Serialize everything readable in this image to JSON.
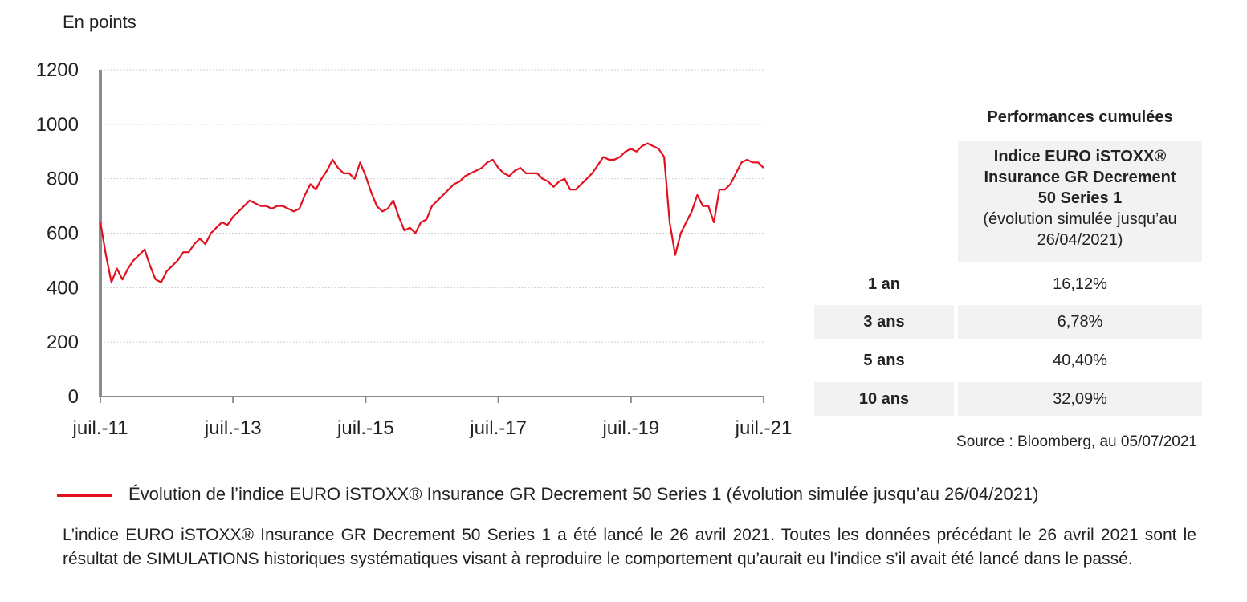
{
  "chart_data": {
    "type": "line",
    "ylabel": "En points",
    "ylim": [
      0,
      1200
    ],
    "yticks": [
      "0",
      "200",
      "400",
      "600",
      "800",
      "1000",
      "1200"
    ],
    "xlim": [
      "2011-07",
      "2021-07"
    ],
    "xticks": [
      "juil.-11",
      "juil.-13",
      "juil.-15",
      "juil.-17",
      "juil.-19",
      "juil.-21"
    ],
    "grid": true,
    "line_color": "#e3101f",
    "series": [
      {
        "name": "Évolution de l’indice EURO iSTOXX® Insurance GR Decrement 50 Series 1 (évolution simulée jusqu’au 26/04/2021)",
        "x": [
          "2011-07",
          "2011-08",
          "2011-09",
          "2011-10",
          "2011-11",
          "2011-12",
          "2012-01",
          "2012-02",
          "2012-03",
          "2012-04",
          "2012-05",
          "2012-06",
          "2012-07",
          "2012-08",
          "2012-09",
          "2012-10",
          "2012-11",
          "2012-12",
          "2013-01",
          "2013-02",
          "2013-03",
          "2013-04",
          "2013-05",
          "2013-06",
          "2013-07",
          "2013-08",
          "2013-09",
          "2013-10",
          "2013-11",
          "2013-12",
          "2014-01",
          "2014-02",
          "2014-03",
          "2014-04",
          "2014-05",
          "2014-06",
          "2014-07",
          "2014-08",
          "2014-09",
          "2014-10",
          "2014-11",
          "2014-12",
          "2015-01",
          "2015-02",
          "2015-03",
          "2015-04",
          "2015-05",
          "2015-06",
          "2015-07",
          "2015-08",
          "2015-09",
          "2015-10",
          "2015-11",
          "2015-12",
          "2016-01",
          "2016-02",
          "2016-03",
          "2016-04",
          "2016-05",
          "2016-06",
          "2016-07",
          "2016-08",
          "2016-09",
          "2016-10",
          "2016-11",
          "2016-12",
          "2017-01",
          "2017-02",
          "2017-03",
          "2017-04",
          "2017-05",
          "2017-06",
          "2017-07",
          "2017-08",
          "2017-09",
          "2017-10",
          "2017-11",
          "2017-12",
          "2018-01",
          "2018-02",
          "2018-03",
          "2018-04",
          "2018-05",
          "2018-06",
          "2018-07",
          "2018-08",
          "2018-09",
          "2018-10",
          "2018-11",
          "2018-12",
          "2019-01",
          "2019-02",
          "2019-03",
          "2019-04",
          "2019-05",
          "2019-06",
          "2019-07",
          "2019-08",
          "2019-09",
          "2019-10",
          "2019-11",
          "2019-12",
          "2020-01",
          "2020-02",
          "2020-03",
          "2020-04",
          "2020-05",
          "2020-06",
          "2020-07",
          "2020-08",
          "2020-09",
          "2020-10",
          "2020-11",
          "2020-12",
          "2021-01",
          "2021-02",
          "2021-03",
          "2021-04",
          "2021-05",
          "2021-06",
          "2021-07"
        ],
        "values": [
          640,
          520,
          420,
          470,
          430,
          470,
          500,
          520,
          540,
          480,
          430,
          420,
          460,
          480,
          500,
          530,
          530,
          560,
          580,
          560,
          600,
          620,
          640,
          630,
          660,
          680,
          700,
          720,
          710,
          700,
          700,
          690,
          700,
          700,
          690,
          680,
          690,
          740,
          780,
          760,
          800,
          830,
          870,
          840,
          820,
          820,
          800,
          860,
          810,
          750,
          700,
          680,
          690,
          720,
          660,
          610,
          620,
          600,
          640,
          650,
          700,
          720,
          740,
          760,
          780,
          790,
          810,
          820,
          830,
          840,
          860,
          870,
          840,
          820,
          810,
          830,
          840,
          820,
          820,
          820,
          800,
          790,
          770,
          790,
          800,
          760,
          760,
          780,
          800,
          820,
          850,
          880,
          870,
          870,
          880,
          900,
          910,
          900,
          920,
          930,
          920,
          910,
          880,
          640,
          520,
          600,
          640,
          680,
          740,
          700,
          700,
          640,
          760,
          760,
          780,
          820,
          860,
          870,
          860,
          860,
          840
        ]
      }
    ]
  },
  "unit_label": "En points",
  "table": {
    "title": "Performances cumulées",
    "header_line1": "Indice EURO iSTOXX®",
    "header_line2": "Insurance GR Decrement",
    "header_line3": "50 Series 1",
    "header_line4": "(évolution simulée jusqu’au",
    "header_line5": "26/04/2021)",
    "rows": [
      {
        "label": "1 an",
        "value": "16,12%"
      },
      {
        "label": "3 ans",
        "value": "6,78%"
      },
      {
        "label": "5 ans",
        "value": "40,40%"
      },
      {
        "label": "10 ans",
        "value": "32,09%"
      }
    ]
  },
  "source": "Source : Bloomberg, au 05/07/2021",
  "legend_text": "Évolution de l’indice EURO iSTOXX® Insurance GR Decrement 50 Series 1 (évolution simulée jusqu’au 26/04/2021)",
  "disclaimer": "L’indice EURO iSTOXX® Insurance GR Decrement 50 Series 1 a été lancé le 26 avril 2021. Toutes les données précédant le 26 avril 2021 sont le résultat de SIMULATIONS historiques systématiques visant à reproduire le comportement qu’aurait eu l’indice s’il avait été lancé dans le passé."
}
